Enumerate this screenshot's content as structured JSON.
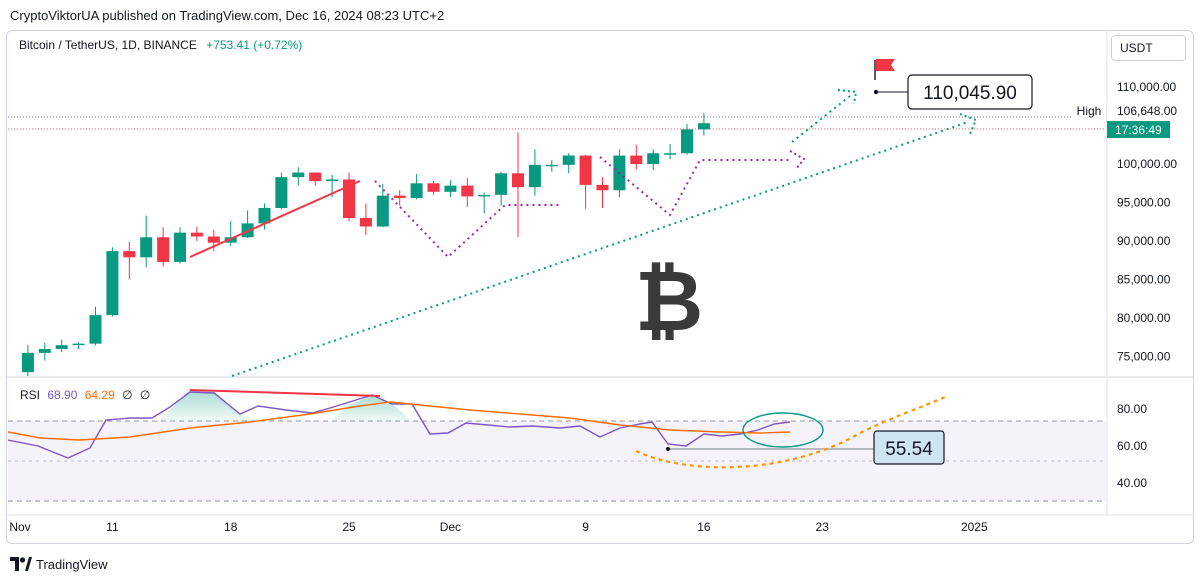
{
  "header": {
    "publisher": "CryptoViktorUA published on TradingView.com, Dec 16, 2024 08:23 UTC+2"
  },
  "symbol": {
    "name": "Bitcoin / TetherUS, 1D, BINANCE",
    "change": "+753.41 (+0.72%)"
  },
  "currency_button": "USDT",
  "price_badges": {
    "high_label": "High",
    "high_value": "106,648.00",
    "countdown": "17:36:49"
  },
  "annotations": {
    "target_price": "110,045.90",
    "rsi_target": "55.54",
    "bitcoin_symbol": "₿"
  },
  "rsi_legend": {
    "name": "RSI",
    "rsi_value": "68.90",
    "ma_value": "64.29",
    "z1": "∅",
    "z2": "∅"
  },
  "footer": {
    "brand": "TradingView"
  },
  "colors": {
    "up": "#089981",
    "down": "#f23645",
    "rsi_line": "#7e57c2",
    "rsi_ma": "#ff6d00",
    "projection": "#089981",
    "pattern": "#9c27b0"
  },
  "chart_data": [
    {
      "type": "candlestick",
      "title": "Bitcoin / TetherUS, 1D, BINANCE",
      "x_ticks": [
        "Nov",
        "11",
        "18",
        "25",
        "Dec",
        "9",
        "16",
        "23",
        "2025"
      ],
      "y_ticks": [
        "110,000.00",
        "100,000.00",
        "95,000.00",
        "90,000.00",
        "85,000.00",
        "80,000.00",
        "75,000.00"
      ],
      "ylim": [
        72500,
        113500
      ],
      "x_start": "2024-11-05",
      "series": [
        {
          "d": "2024-11-06",
          "o": 73000,
          "h": 76500,
          "l": 72500,
          "c": 75500
        },
        {
          "d": "2024-11-07",
          "o": 75500,
          "h": 76800,
          "l": 74500,
          "c": 76000
        },
        {
          "d": "2024-11-08",
          "o": 76000,
          "h": 77200,
          "l": 75600,
          "c": 76500
        },
        {
          "d": "2024-11-09",
          "o": 76500,
          "h": 76900,
          "l": 76000,
          "c": 76700
        },
        {
          "d": "2024-11-10",
          "o": 76700,
          "h": 81500,
          "l": 76500,
          "c": 80400
        },
        {
          "d": "2024-11-11",
          "o": 80400,
          "h": 89200,
          "l": 80200,
          "c": 88700
        },
        {
          "d": "2024-11-12",
          "o": 88700,
          "h": 89900,
          "l": 85100,
          "c": 87900
        },
        {
          "d": "2024-11-13",
          "o": 87900,
          "h": 93300,
          "l": 86600,
          "c": 90500
        },
        {
          "d": "2024-11-14",
          "o": 90500,
          "h": 91800,
          "l": 86700,
          "c": 87300
        },
        {
          "d": "2024-11-15",
          "o": 87300,
          "h": 91800,
          "l": 87100,
          "c": 91100
        },
        {
          "d": "2024-11-16",
          "o": 91100,
          "h": 91900,
          "l": 90000,
          "c": 90600
        },
        {
          "d": "2024-11-17",
          "o": 90600,
          "h": 91500,
          "l": 88700,
          "c": 89800
        },
        {
          "d": "2024-11-18",
          "o": 89800,
          "h": 92600,
          "l": 89400,
          "c": 90500
        },
        {
          "d": "2024-11-19",
          "o": 90500,
          "h": 94000,
          "l": 90400,
          "c": 92300
        },
        {
          "d": "2024-11-20",
          "o": 92300,
          "h": 94900,
          "l": 91500,
          "c": 94300
        },
        {
          "d": "2024-11-21",
          "o": 94300,
          "h": 98900,
          "l": 94100,
          "c": 98300
        },
        {
          "d": "2024-11-22",
          "o": 98300,
          "h": 99600,
          "l": 97200,
          "c": 98900
        },
        {
          "d": "2024-11-23",
          "o": 98900,
          "h": 98900,
          "l": 97200,
          "c": 97800
        },
        {
          "d": "2024-11-24",
          "o": 97800,
          "h": 98600,
          "l": 95700,
          "c": 98000
        },
        {
          "d": "2024-11-25",
          "o": 98000,
          "h": 98900,
          "l": 92600,
          "c": 93000
        },
        {
          "d": "2024-11-26",
          "o": 93000,
          "h": 94900,
          "l": 90800,
          "c": 91900
        },
        {
          "d": "2024-11-27",
          "o": 91900,
          "h": 97400,
          "l": 91800,
          "c": 95900
        },
        {
          "d": "2024-11-28",
          "o": 95900,
          "h": 96600,
          "l": 94600,
          "c": 95600
        },
        {
          "d": "2024-11-29",
          "o": 95600,
          "h": 98700,
          "l": 95400,
          "c": 97500
        },
        {
          "d": "2024-11-30",
          "o": 97500,
          "h": 97800,
          "l": 96000,
          "c": 96400
        },
        {
          "d": "2024-12-01",
          "o": 96400,
          "h": 97900,
          "l": 95700,
          "c": 97200
        },
        {
          "d": "2024-12-02",
          "o": 97200,
          "h": 98200,
          "l": 94400,
          "c": 95800
        },
        {
          "d": "2024-12-03",
          "o": 95800,
          "h": 96300,
          "l": 93600,
          "c": 96000
        },
        {
          "d": "2024-12-04",
          "o": 96000,
          "h": 99000,
          "l": 94600,
          "c": 98800
        },
        {
          "d": "2024-12-05",
          "o": 98800,
          "h": 104100,
          "l": 90500,
          "c": 97000
        },
        {
          "d": "2024-12-06",
          "o": 97000,
          "h": 101900,
          "l": 95900,
          "c": 99900
        },
        {
          "d": "2024-12-07",
          "o": 99900,
          "h": 100500,
          "l": 99000,
          "c": 99900
        },
        {
          "d": "2024-12-08",
          "o": 99900,
          "h": 101400,
          "l": 98800,
          "c": 101100
        },
        {
          "d": "2024-12-09",
          "o": 101100,
          "h": 101200,
          "l": 94200,
          "c": 97300
        },
        {
          "d": "2024-12-10",
          "o": 97300,
          "h": 98300,
          "l": 94300,
          "c": 96600
        },
        {
          "d": "2024-12-11",
          "o": 96600,
          "h": 101900,
          "l": 95700,
          "c": 101100
        },
        {
          "d": "2024-12-12",
          "o": 101100,
          "h": 102500,
          "l": 99300,
          "c": 100000
        },
        {
          "d": "2024-12-13",
          "o": 100000,
          "h": 101900,
          "l": 99200,
          "c": 101400
        },
        {
          "d": "2024-12-14",
          "o": 101400,
          "h": 102600,
          "l": 100600,
          "c": 101400
        },
        {
          "d": "2024-12-15",
          "o": 101400,
          "h": 105200,
          "l": 101200,
          "c": 104500
        },
        {
          "d": "2024-12-16",
          "o": 104500,
          "h": 106648,
          "l": 103700,
          "c": 105300
        }
      ]
    },
    {
      "type": "line",
      "title": "RSI",
      "y_ticks": [
        "80.00",
        "60.00",
        "40.00"
      ],
      "ylim": [
        25,
        95
      ],
      "bands": [
        70,
        50,
        30
      ],
      "series": [
        {
          "name": "RSI",
          "values": [
            68.9
          ]
        },
        {
          "name": "MA",
          "values": [
            64.29
          ]
        }
      ]
    }
  ]
}
